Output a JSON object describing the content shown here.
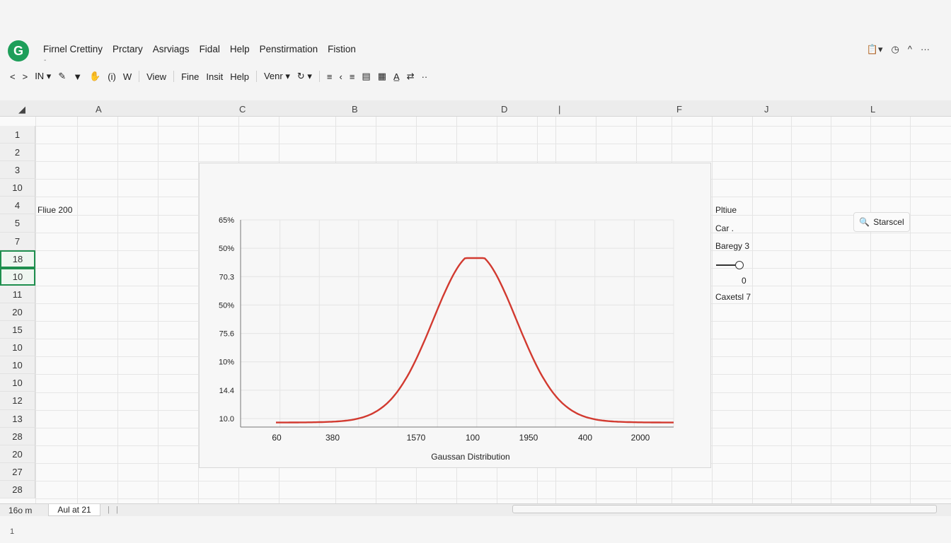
{
  "app": {
    "logo_letter": "G",
    "menu": [
      "Firnel Crettiny",
      "Prctary",
      "Asrviags",
      "Fidal",
      "Help",
      "Penstirmation",
      "Fistion"
    ],
    "menu_dash": "-"
  },
  "toolbar": {
    "items": [
      "<",
      ">",
      "IN ▾",
      "✎",
      "▼",
      "✋",
      "(i)",
      "W",
      "View",
      "Fine",
      "Insit",
      "Help",
      "Venr ▾",
      "↻ ▾",
      "≡",
      "‹",
      "≡",
      "▤",
      "▦",
      "A̲",
      "⇄",
      "··"
    ]
  },
  "grid": {
    "columns": [
      "A",
      "C",
      "B",
      "D",
      "|",
      "F",
      "J",
      "L"
    ],
    "rows": [
      "1",
      "2",
      "3",
      "10",
      "4",
      "5",
      "7",
      "18",
      "10",
      "11",
      "20",
      "15",
      "10",
      "10",
      "10",
      "12",
      "13",
      "28",
      "20",
      "27",
      "28"
    ],
    "selected_rows": [
      7,
      8
    ],
    "cells": {
      "a4": "Fliue 200",
      "pane_1": "Pltiue",
      "pane_2": "Car  .",
      "pane_3": "Baregy 3",
      "pane_4": "0",
      "pane_5": "Caxetsl 7"
    }
  },
  "side_button": {
    "icon": "search-icon",
    "label": "Starscel"
  },
  "chart_data": {
    "type": "line",
    "title": "",
    "xlabel": "Gaussan Distribution",
    "ylabel": "",
    "x_tick_labels": [
      "60",
      "380",
      "1570",
      "100",
      "1950",
      "400",
      "2000"
    ],
    "y_tick_labels": [
      "65%",
      "50%",
      "70.3",
      "50%",
      "75.6",
      "10%",
      "14.4",
      "10.0"
    ],
    "y_range": [
      0,
      1
    ],
    "series": [
      {
        "color": "#d23a30",
        "x": [
          0,
          0.1,
          0.2,
          0.3,
          0.4,
          0.45,
          0.5,
          0.55,
          0.6,
          0.7,
          0.8,
          0.9,
          1.0
        ],
        "y": [
          0.01,
          0.03,
          0.08,
          0.2,
          0.55,
          0.75,
          0.8,
          0.75,
          0.55,
          0.2,
          0.08,
          0.03,
          0.01
        ]
      }
    ],
    "grid": true
  },
  "footer": {
    "tab1": "16o m",
    "tab2": "Aul at 21",
    "status": "1"
  }
}
